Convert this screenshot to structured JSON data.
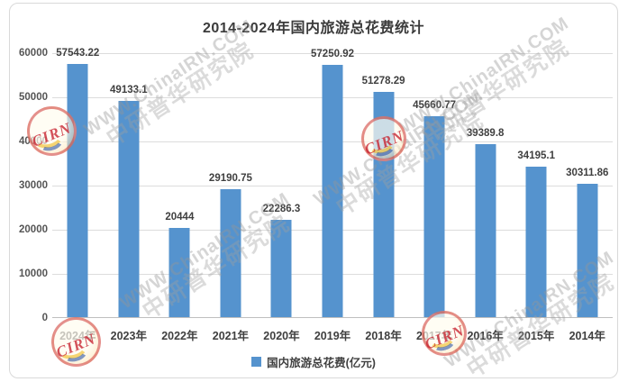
{
  "chart_data": {
    "type": "bar",
    "title": "2014-2024年国内旅游总花费统计",
    "categories": [
      "2024年",
      "2023年",
      "2022年",
      "2021年",
      "2020年",
      "2019年",
      "2018年",
      "2017年",
      "2016年",
      "2015年",
      "2014年"
    ],
    "values": [
      57543.22,
      49133.1,
      20444,
      29190.75,
      22286.3,
      57250.92,
      51278.29,
      45660.77,
      39389.8,
      34195.1,
      30311.86
    ],
    "value_labels": [
      "57543.22",
      "49133.1",
      "20444",
      "29190.75",
      "22286.3",
      "57250.92",
      "51278.29",
      "45660.77",
      "39389.8",
      "34195.1",
      "30311.86"
    ],
    "series_name": "国内旅游总花费(亿元)",
    "xlabel": "",
    "ylabel": "",
    "ylim": [
      0,
      60000
    ],
    "ytick_step": 10000,
    "yticks": [
      "0",
      "10000",
      "20000",
      "30000",
      "40000",
      "50000",
      "60000"
    ],
    "grid": true,
    "legend_position": "bottom",
    "bar_color": "#5593CE",
    "label_color": "#3f3f3f",
    "grid_color": "#dcdcdc",
    "axis_color": "#bfbfbf"
  },
  "legend": {
    "swatch_color": "#5593CE",
    "label": "国内旅游总花费(亿元)"
  },
  "watermark": {
    "stamp_text": "CIRN",
    "url_text": "WWW.ChinaIRN.COM",
    "brand_text": "中研普华研究院"
  }
}
